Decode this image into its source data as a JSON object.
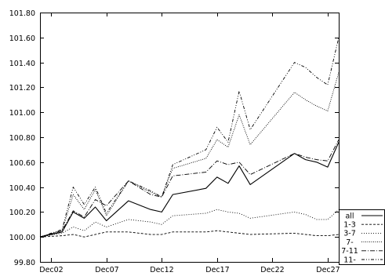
{
  "chart_data": {
    "type": "line",
    "title": "",
    "xlabel": "",
    "ylabel": "",
    "x_domain": [
      1,
      28
    ],
    "ylim": [
      99.8,
      101.8
    ],
    "y_ticks": [
      99.8,
      100.0,
      100.2,
      100.4,
      100.6,
      100.8,
      101.0,
      101.2,
      101.4,
      101.6,
      101.8
    ],
    "y_tick_labels": [
      "99.80",
      "100.00",
      "100.20",
      "100.40",
      "100.60",
      "100.80",
      "101.00",
      "101.20",
      "101.40",
      "101.60",
      "101.80"
    ],
    "x_ticks": [
      2,
      7,
      12,
      17,
      22,
      27
    ],
    "x_tick_labels": [
      "Dec02",
      "Dec07",
      "Dec12",
      "Dec17",
      "Dec22",
      "Dec27"
    ],
    "grid": false,
    "legend_position": "bottom-right",
    "x": [
      1,
      3,
      4,
      5,
      6,
      7,
      9,
      11,
      12,
      13,
      16,
      17,
      18,
      19,
      20,
      24,
      25,
      26,
      27,
      28
    ],
    "series": [
      {
        "name": "all",
        "style": "solid",
        "values": [
          100.0,
          100.04,
          100.2,
          100.15,
          100.24,
          100.13,
          100.29,
          100.22,
          100.2,
          100.34,
          100.39,
          100.48,
          100.43,
          100.57,
          100.42,
          100.67,
          100.62,
          100.6,
          100.56,
          100.76
        ]
      },
      {
        "name": "1-3",
        "style": "dashed",
        "values": [
          100.0,
          100.01,
          100.02,
          100.0,
          100.02,
          100.04,
          100.04,
          100.02,
          100.02,
          100.04,
          100.04,
          100.05,
          100.04,
          100.03,
          100.02,
          100.03,
          100.02,
          100.01,
          100.01,
          100.02
        ]
      },
      {
        "name": "3-7",
        "style": "dotted-fine",
        "values": [
          100.0,
          100.03,
          100.08,
          100.05,
          100.12,
          100.08,
          100.14,
          100.12,
          100.1,
          100.17,
          100.19,
          100.22,
          100.2,
          100.19,
          100.15,
          100.2,
          100.18,
          100.14,
          100.14,
          100.22
        ]
      },
      {
        "name": "7-",
        "style": "dotted",
        "values": [
          100.0,
          100.05,
          100.34,
          100.22,
          100.38,
          100.17,
          100.45,
          100.36,
          100.32,
          100.55,
          100.63,
          100.78,
          100.72,
          100.98,
          100.74,
          101.16,
          101.1,
          101.05,
          101.01,
          101.32
        ]
      },
      {
        "name": "7-11",
        "style": "dash-dot",
        "values": [
          100.0,
          100.05,
          100.21,
          100.16,
          100.3,
          100.25,
          100.45,
          100.34,
          100.32,
          100.49,
          100.52,
          100.61,
          100.58,
          100.6,
          100.5,
          100.67,
          100.64,
          100.62,
          100.61,
          100.78
        ]
      },
      {
        "name": "11-",
        "style": "dash-dot-dot",
        "values": [
          100.0,
          100.06,
          100.4,
          100.26,
          100.4,
          100.19,
          100.45,
          100.37,
          100.32,
          100.58,
          100.7,
          100.88,
          100.76,
          101.17,
          100.86,
          101.4,
          101.36,
          101.28,
          101.22,
          101.6
        ]
      }
    ]
  }
}
